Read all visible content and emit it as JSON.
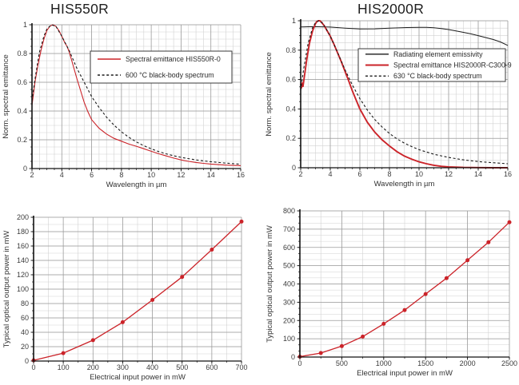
{
  "page": {
    "background": "#ffffff",
    "accent_red": "#cb2329",
    "line_black": "#1a1a1a"
  },
  "chart_data": [
    {
      "id": "his550r-spectral",
      "type": "line",
      "title": "HIS550R",
      "xlabel": "Wavelength in µm",
      "ylabel": "Norm. spectral emittance",
      "xlim": [
        2,
        16
      ],
      "ylim": [
        0,
        1
      ],
      "xticks": [
        2,
        4,
        6,
        8,
        10,
        12,
        14,
        16
      ],
      "xtick_labels": [
        "2",
        "4",
        "6",
        "8",
        "10",
        "12",
        "14",
        "16"
      ],
      "yticks": [
        0,
        0.2,
        0.4,
        0.6,
        0.8,
        1
      ],
      "ytick_labels": [
        "0",
        "0.2",
        "0.4",
        "0.6",
        "0.8",
        "1"
      ],
      "grid": {
        "minor_x": 0.5,
        "minor_y": 0.05,
        "minor_color": "#d2d2d2",
        "major_color": "#9a9a9a"
      },
      "legend_position": "upper right inset",
      "series": [
        {
          "name": "Spectral emittance HIS550R-0",
          "color": "#cb2329",
          "style": "solid",
          "width": 1.1,
          "markers": false,
          "x": [
            2,
            2.1,
            2.2,
            2.4,
            2.6,
            2.8,
            3.0,
            3.2,
            3.4,
            3.6,
            3.8,
            4.0,
            4.2,
            4.35,
            4.5,
            4.75,
            5.0,
            5.25,
            5.5,
            5.75,
            6.0,
            6.5,
            7.0,
            7.5,
            8.0,
            8.5,
            9.0,
            9.5,
            10,
            10.5,
            11,
            11.5,
            12,
            12.5,
            13,
            13.5,
            14,
            15,
            16
          ],
          "y": [
            0.44,
            0.52,
            0.6,
            0.72,
            0.82,
            0.9,
            0.96,
            0.99,
            1.0,
            0.99,
            0.96,
            0.92,
            0.875,
            0.85,
            0.81,
            0.72,
            0.63,
            0.545,
            0.46,
            0.395,
            0.34,
            0.28,
            0.24,
            0.21,
            0.19,
            0.17,
            0.155,
            0.138,
            0.12,
            0.103,
            0.088,
            0.073,
            0.06,
            0.05,
            0.042,
            0.036,
            0.031,
            0.024,
            0.02
          ]
        },
        {
          "name": "600 °C black-body spectrum",
          "color": "#1a1a1a",
          "style": "dashed",
          "width": 1.1,
          "markers": false,
          "x": [
            2,
            2.2,
            2.5,
            2.8,
            3.0,
            3.3,
            3.6,
            4.0,
            4.5,
            5.0,
            5.5,
            6.0,
            6.5,
            7.0,
            7.5,
            8.0,
            8.5,
            9.0,
            9.5,
            10,
            10.5,
            11,
            11.5,
            12,
            13,
            14,
            15,
            16
          ],
          "y": [
            0.47,
            0.62,
            0.81,
            0.92,
            0.97,
            1.0,
            0.99,
            0.92,
            0.82,
            0.7,
            0.6,
            0.5,
            0.425,
            0.358,
            0.302,
            0.255,
            0.217,
            0.185,
            0.159,
            0.137,
            0.118,
            0.102,
            0.089,
            0.078,
            0.06,
            0.047,
            0.038,
            0.03
          ]
        }
      ]
    },
    {
      "id": "his2000r-spectral",
      "type": "line",
      "title": "HIS2000R",
      "xlabel": "Wavelength in µm",
      "ylabel": "Norm. spectral emittance",
      "xlim": [
        2,
        16
      ],
      "ylim": [
        0,
        1
      ],
      "xticks": [
        2,
        4,
        6,
        8,
        10,
        12,
        14,
        16
      ],
      "xtick_labels": [
        "2",
        "4",
        "6",
        "8",
        "10",
        "12",
        "14",
        "16"
      ],
      "yticks": [
        0,
        0.2,
        0.4,
        0.6,
        0.8,
        1
      ],
      "ytick_labels": [
        "0",
        "0.2",
        "0.4",
        "0.6",
        "0.8",
        "1"
      ],
      "grid": {
        "minor_x": 0.5,
        "minor_y": 0.05,
        "minor_color": "#d2d2d2",
        "major_color": "#9a9a9a"
      },
      "legend_position": "upper right inset",
      "series": [
        {
          "name": "Radiating element emissivity",
          "color": "#1a1a1a",
          "style": "solid",
          "width": 1.0,
          "markers": false,
          "x": [
            2,
            2.5,
            3,
            4,
            5,
            6,
            7,
            8,
            9,
            10,
            10.5,
            11,
            11.5,
            12,
            12.5,
            13,
            13.5,
            14,
            14.5,
            15,
            15.5,
            16
          ],
          "y": [
            0.958,
            0.959,
            0.96,
            0.957,
            0.95,
            0.944,
            0.945,
            0.95,
            0.953,
            0.955,
            0.955,
            0.952,
            0.947,
            0.94,
            0.931,
            0.921,
            0.911,
            0.899,
            0.886,
            0.873,
            0.856,
            0.832
          ]
        },
        {
          "name": "Spectral emittance HIS2000R-C300-9",
          "color": "#cb2329",
          "style": "solid",
          "width": 1.9,
          "markers": false,
          "x": [
            2,
            2.05,
            2.1,
            2.15,
            2.25,
            2.4,
            2.6,
            2.8,
            3.0,
            3.1,
            3.2,
            3.3,
            3.4,
            3.6,
            3.8,
            4.0,
            4.25,
            4.5,
            4.75,
            5.0,
            5.25,
            5.5,
            5.75,
            6.0,
            6.5,
            7.0,
            7.5,
            8.0,
            8.5,
            9.0,
            9.5,
            10,
            10.5,
            11,
            11.5,
            12,
            13,
            14,
            15,
            16
          ],
          "y": [
            0.57,
            0.54,
            0.58,
            0.55,
            0.62,
            0.73,
            0.85,
            0.93,
            0.98,
            0.995,
            1.0,
            1.0,
            0.99,
            0.965,
            0.93,
            0.895,
            0.84,
            0.78,
            0.72,
            0.655,
            0.59,
            0.52,
            0.46,
            0.4,
            0.31,
            0.243,
            0.19,
            0.148,
            0.11,
            0.08,
            0.058,
            0.04,
            0.027,
            0.017,
            0.01,
            0.006,
            0.002,
            0.001,
            0.0,
            0.0
          ]
        },
        {
          "name": "630 °C black-body spectrum",
          "color": "#1a1a1a",
          "style": "dashed",
          "width": 1.1,
          "markers": false,
          "x": [
            2,
            2.2,
            2.5,
            2.8,
            3.0,
            3.2,
            3.5,
            4.0,
            4.5,
            5.0,
            5.5,
            6.0,
            6.5,
            7.0,
            7.5,
            8.0,
            8.5,
            9.0,
            9.5,
            10,
            11,
            12,
            13,
            14,
            15,
            16
          ],
          "y": [
            0.525,
            0.672,
            0.846,
            0.952,
            0.987,
            1.0,
            0.982,
            0.896,
            0.782,
            0.667,
            0.561,
            0.47,
            0.393,
            0.329,
            0.277,
            0.233,
            0.197,
            0.168,
            0.144,
            0.123,
            0.092,
            0.07,
            0.054,
            0.042,
            0.034,
            0.027
          ]
        }
      ]
    },
    {
      "id": "his550r-power",
      "type": "line",
      "title": "",
      "xlabel": "Electrical input power in mW",
      "ylabel": "Typical optical output power in mW",
      "xlim": [
        0,
        700
      ],
      "ylim": [
        0,
        200
      ],
      "xticks": [
        0,
        100,
        200,
        300,
        400,
        500,
        600,
        700
      ],
      "xtick_labels": [
        "0",
        "100",
        "200",
        "300",
        "400",
        "500",
        "600",
        "700"
      ],
      "yticks": [
        0,
        20,
        40,
        60,
        80,
        100,
        120,
        140,
        160,
        180,
        200
      ],
      "ytick_labels": [
        "0",
        "20",
        "40",
        "60",
        "80",
        "100",
        "120",
        "140",
        "160",
        "180",
        "200"
      ],
      "grid": {
        "minor_x": 50,
        "minor_y": 10,
        "minor_color": "#d2d2d2",
        "major_color": "#9a9a9a"
      },
      "legend_position": "none",
      "series": [
        {
          "name": "Typical optical output power HIS550R",
          "color": "#cb2329",
          "style": "solid",
          "width": 1.3,
          "markers": true,
          "x": [
            0,
            100,
            200,
            300,
            400,
            500,
            600,
            700
          ],
          "y": [
            1,
            11,
            29,
            54,
            85,
            117,
            155,
            194
          ]
        }
      ]
    },
    {
      "id": "his2000r-power",
      "type": "line",
      "title": "",
      "xlabel": "Electrical input power in mW",
      "ylabel": "Typical optical output power in mW",
      "xlim": [
        0,
        2500
      ],
      "ylim": [
        0,
        800
      ],
      "xticks": [
        0,
        500,
        1000,
        1500,
        2000,
        2500
      ],
      "xtick_labels": [
        "0",
        "500",
        "1000",
        "1500",
        "2000",
        "2500"
      ],
      "yticks": [
        0,
        100,
        200,
        300,
        400,
        500,
        600,
        700,
        800
      ],
      "ytick_labels": [
        "0",
        "100",
        "200",
        "300",
        "400",
        "500",
        "600",
        "700",
        "800"
      ],
      "grid": {
        "minor_x": 250,
        "minor_y": 33.3333,
        "minor_color": "#d2d2d2",
        "major_color": "#9a9a9a"
      },
      "legend_position": "none",
      "series": [
        {
          "name": "Typical optical output power HIS2000R",
          "color": "#cb2329",
          "style": "solid",
          "width": 1.3,
          "markers": true,
          "x": [
            0,
            250,
            500,
            750,
            1000,
            1250,
            1500,
            1750,
            2000,
            2250,
            2500
          ],
          "y": [
            2,
            22,
            60,
            112,
            182,
            257,
            345,
            432,
            530,
            628,
            738
          ]
        }
      ]
    }
  ]
}
